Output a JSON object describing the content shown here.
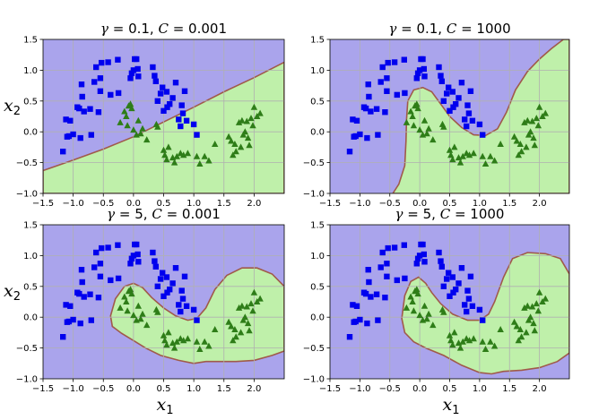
{
  "colors": {
    "class0_region": "#aaa4ec",
    "class1_region": "#bff0aa",
    "boundary": "#a05a4a",
    "class0_marker": "#0000ee",
    "class1_marker": "#2e7d18",
    "grid": "#b0b0b0"
  },
  "chart_data": [
    {
      "type": "scatter",
      "title": "γ = 0.1, C = 0.001",
      "title_parts": {
        "gamma_sym": "γ",
        "gamma_val": "= 0.1,",
        "c_sym": "C",
        "c_val": "= 0.001"
      },
      "xlabel": "x1",
      "xlabel_main": "x",
      "xlabel_sub": "1",
      "ylabel": "x2",
      "ylabel_main": "x",
      "ylabel_sub": "2",
      "xlim": [
        -1.5,
        2.5
      ],
      "ylim": [
        -1.0,
        1.5
      ],
      "boundary_model": "linear",
      "show_xlabel": false,
      "show_ylabel": true
    },
    {
      "type": "scatter",
      "title": "γ = 0.1, C = 1000",
      "title_parts": {
        "gamma_sym": "γ",
        "gamma_val": "= 0.1,",
        "c_sym": "C",
        "c_val": "= 1000"
      },
      "xlabel": "x1",
      "xlabel_main": "x",
      "xlabel_sub": "1",
      "ylabel": "x2",
      "ylabel_main": "x",
      "ylabel_sub": "2",
      "xlim": [
        -1.5,
        2.5
      ],
      "ylim": [
        -1.0,
        1.5
      ],
      "boundary_model": "curved",
      "show_xlabel": false,
      "show_ylabel": false
    },
    {
      "type": "scatter",
      "title": "γ = 5, C = 0.001",
      "title_parts": {
        "gamma_sym": "γ",
        "gamma_val": "= 5,",
        "c_sym": "C",
        "c_val": "= 0.001"
      },
      "xlabel": "x1",
      "xlabel_main": "x",
      "xlabel_sub": "1",
      "ylabel": "x2",
      "ylabel_main": "x",
      "ylabel_sub": "2",
      "xlim": [
        -1.5,
        2.5
      ],
      "ylim": [
        -1.0,
        1.5
      ],
      "boundary_model": "blob",
      "show_xlabel": true,
      "show_ylabel": true
    },
    {
      "type": "scatter",
      "title": "γ = 5, C = 1000",
      "title_parts": {
        "gamma_sym": "γ",
        "gamma_val": "= 5,",
        "c_sym": "C",
        "c_val": "= 1000"
      },
      "xlabel": "x1",
      "xlabel_main": "x",
      "xlabel_sub": "1",
      "ylabel": "x2",
      "ylabel_main": "x",
      "ylabel_sub": "2",
      "xlim": [
        -1.5,
        2.5
      ],
      "ylim": [
        -1.0,
        1.5
      ],
      "boundary_model": "blob_tight",
      "show_xlabel": true,
      "show_ylabel": false
    }
  ],
  "axes": {
    "xticks": [
      -1.5,
      -1.0,
      -0.5,
      0.0,
      0.5,
      1.0,
      1.5,
      2.0
    ],
    "xtick_labels": [
      "−1.5",
      "−1.0",
      "−0.5",
      "0.0",
      "0.5",
      "1.0",
      "1.5",
      "2.0"
    ],
    "yticks": [
      -1.0,
      -0.5,
      0.0,
      0.5,
      1.0,
      1.5
    ],
    "ytick_labels": [
      "−1.0",
      "−0.5",
      "0.0",
      "0.5",
      "1.0",
      "1.5"
    ],
    "grid": true
  },
  "points": {
    "class0": [
      [
        -1.17,
        -0.32
      ],
      [
        -1.12,
        0.2
      ],
      [
        -1.1,
        -0.08
      ],
      [
        -1.07,
        -0.07
      ],
      [
        -1.05,
        0.18
      ],
      [
        -1.0,
        -0.04
      ],
      [
        -0.93,
        0.4
      ],
      [
        -0.9,
        0.38
      ],
      [
        -0.88,
        -0.1
      ],
      [
        -0.86,
        0.77
      ],
      [
        -0.85,
        0.57
      ],
      [
        -0.82,
        0.33
      ],
      [
        -0.72,
        0.37
      ],
      [
        -0.7,
        -0.05
      ],
      [
        -0.65,
        0.81
      ],
      [
        -0.62,
        1.05
      ],
      [
        -0.58,
        0.32
      ],
      [
        -0.55,
        0.66
      ],
      [
        -0.55,
        0.87
      ],
      [
        -0.53,
        1.12
      ],
      [
        -0.42,
        1.13
      ],
      [
        -0.38,
        0.6
      ],
      [
        -0.26,
        1.17
      ],
      [
        -0.25,
        0.63
      ],
      [
        -0.05,
        0.87
      ],
      [
        -0.03,
        0.95
      ],
      [
        0.0,
        1.0
      ],
      [
        0.02,
        1.18
      ],
      [
        0.05,
        1.18
      ],
      [
        0.07,
        1.02
      ],
      [
        0.08,
        0.9
      ],
      [
        0.32,
        1.05
      ],
      [
        0.35,
        0.91
      ],
      [
        0.37,
        0.82
      ],
      [
        0.4,
        0.5
      ],
      [
        0.45,
        0.62
      ],
      [
        0.48,
        0.72
      ],
      [
        0.5,
        0.34
      ],
      [
        0.55,
        0.65
      ],
      [
        0.56,
        0.4
      ],
      [
        0.6,
        0.45
      ],
      [
        0.65,
        0.55
      ],
      [
        0.7,
        0.8
      ],
      [
        0.75,
        0.2
      ],
      [
        0.78,
        0.09
      ],
      [
        0.8,
        0.43
      ],
      [
        0.82,
        0.3
      ],
      [
        0.85,
        0.66
      ],
      [
        0.88,
        0.18
      ],
      [
        1.0,
        0.12
      ],
      [
        1.05,
        -0.05
      ]
    ],
    "class1": [
      [
        -0.22,
        0.15
      ],
      [
        -0.15,
        0.33
      ],
      [
        -0.12,
        0.25
      ],
      [
        -0.1,
        0.1
      ],
      [
        -0.08,
        0.42
      ],
      [
        -0.05,
        0.45
      ],
      [
        -0.03,
        0.38
      ],
      [
        0.0,
        0.03
      ],
      [
        0.05,
        -0.05
      ],
      [
        0.08,
        0.18
      ],
      [
        0.12,
        -0.03
      ],
      [
        0.15,
        0.05
      ],
      [
        0.22,
        -0.13
      ],
      [
        0.38,
        0.12
      ],
      [
        0.4,
        0.08
      ],
      [
        0.5,
        -0.3
      ],
      [
        0.52,
        -0.38
      ],
      [
        0.55,
        -0.45
      ],
      [
        0.58,
        -0.25
      ],
      [
        0.65,
        -0.42
      ],
      [
        0.68,
        -0.5
      ],
      [
        0.72,
        -0.4
      ],
      [
        0.78,
        -0.35
      ],
      [
        0.83,
        -0.38
      ],
      [
        0.9,
        -0.35
      ],
      [
        1.05,
        -0.4
      ],
      [
        1.1,
        -0.52
      ],
      [
        1.18,
        -0.4
      ],
      [
        1.25,
        -0.47
      ],
      [
        1.35,
        -0.2
      ],
      [
        1.58,
        -0.08
      ],
      [
        1.62,
        -0.15
      ],
      [
        1.65,
        -0.38
      ],
      [
        1.68,
        -0.2
      ],
      [
        1.7,
        -0.32
      ],
      [
        1.75,
        0.15
      ],
      [
        1.78,
        -0.25
      ],
      [
        1.8,
        0.18
      ],
      [
        1.85,
        0.0
      ],
      [
        1.88,
        0.17
      ],
      [
        1.9,
        -0.1
      ],
      [
        1.95,
        0.22
      ],
      [
        1.98,
        0.1
      ],
      [
        2.0,
        0.4
      ],
      [
        2.05,
        0.25
      ],
      [
        2.1,
        0.3
      ],
      [
        1.82,
        -0.05
      ],
      [
        1.92,
        -0.22
      ]
    ]
  }
}
